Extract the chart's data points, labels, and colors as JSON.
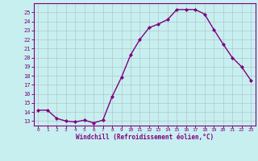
{
  "x": [
    0,
    1,
    2,
    3,
    4,
    5,
    6,
    7,
    8,
    9,
    10,
    11,
    12,
    13,
    14,
    15,
    16,
    17,
    18,
    19,
    20,
    21,
    22,
    23
  ],
  "y": [
    14.2,
    14.2,
    13.3,
    13.0,
    12.9,
    13.1,
    12.8,
    13.1,
    15.7,
    17.8,
    20.3,
    22.0,
    23.3,
    23.7,
    24.2,
    25.3,
    25.3,
    25.3,
    24.8,
    23.1,
    21.5,
    20.0,
    19.0,
    17.5
  ],
  "line_color": "#800080",
  "marker": "D",
  "marker_size": 2,
  "bg_color": "#c8eff0",
  "grid_color": "#b0c8c8",
  "xlabel": "Windchill (Refroidissement éolien,°C)",
  "ylim": [
    12.5,
    26.0
  ],
  "yticks": [
    13,
    14,
    15,
    16,
    17,
    18,
    19,
    20,
    21,
    22,
    23,
    24,
    25
  ],
  "xticks": [
    0,
    1,
    2,
    3,
    4,
    5,
    6,
    7,
    8,
    9,
    10,
    11,
    12,
    13,
    14,
    15,
    16,
    17,
    18,
    19,
    20,
    21,
    22,
    23
  ],
  "tick_color": "#800080",
  "label_color": "#800080",
  "spine_color": "#800080",
  "linewidth": 1.0
}
